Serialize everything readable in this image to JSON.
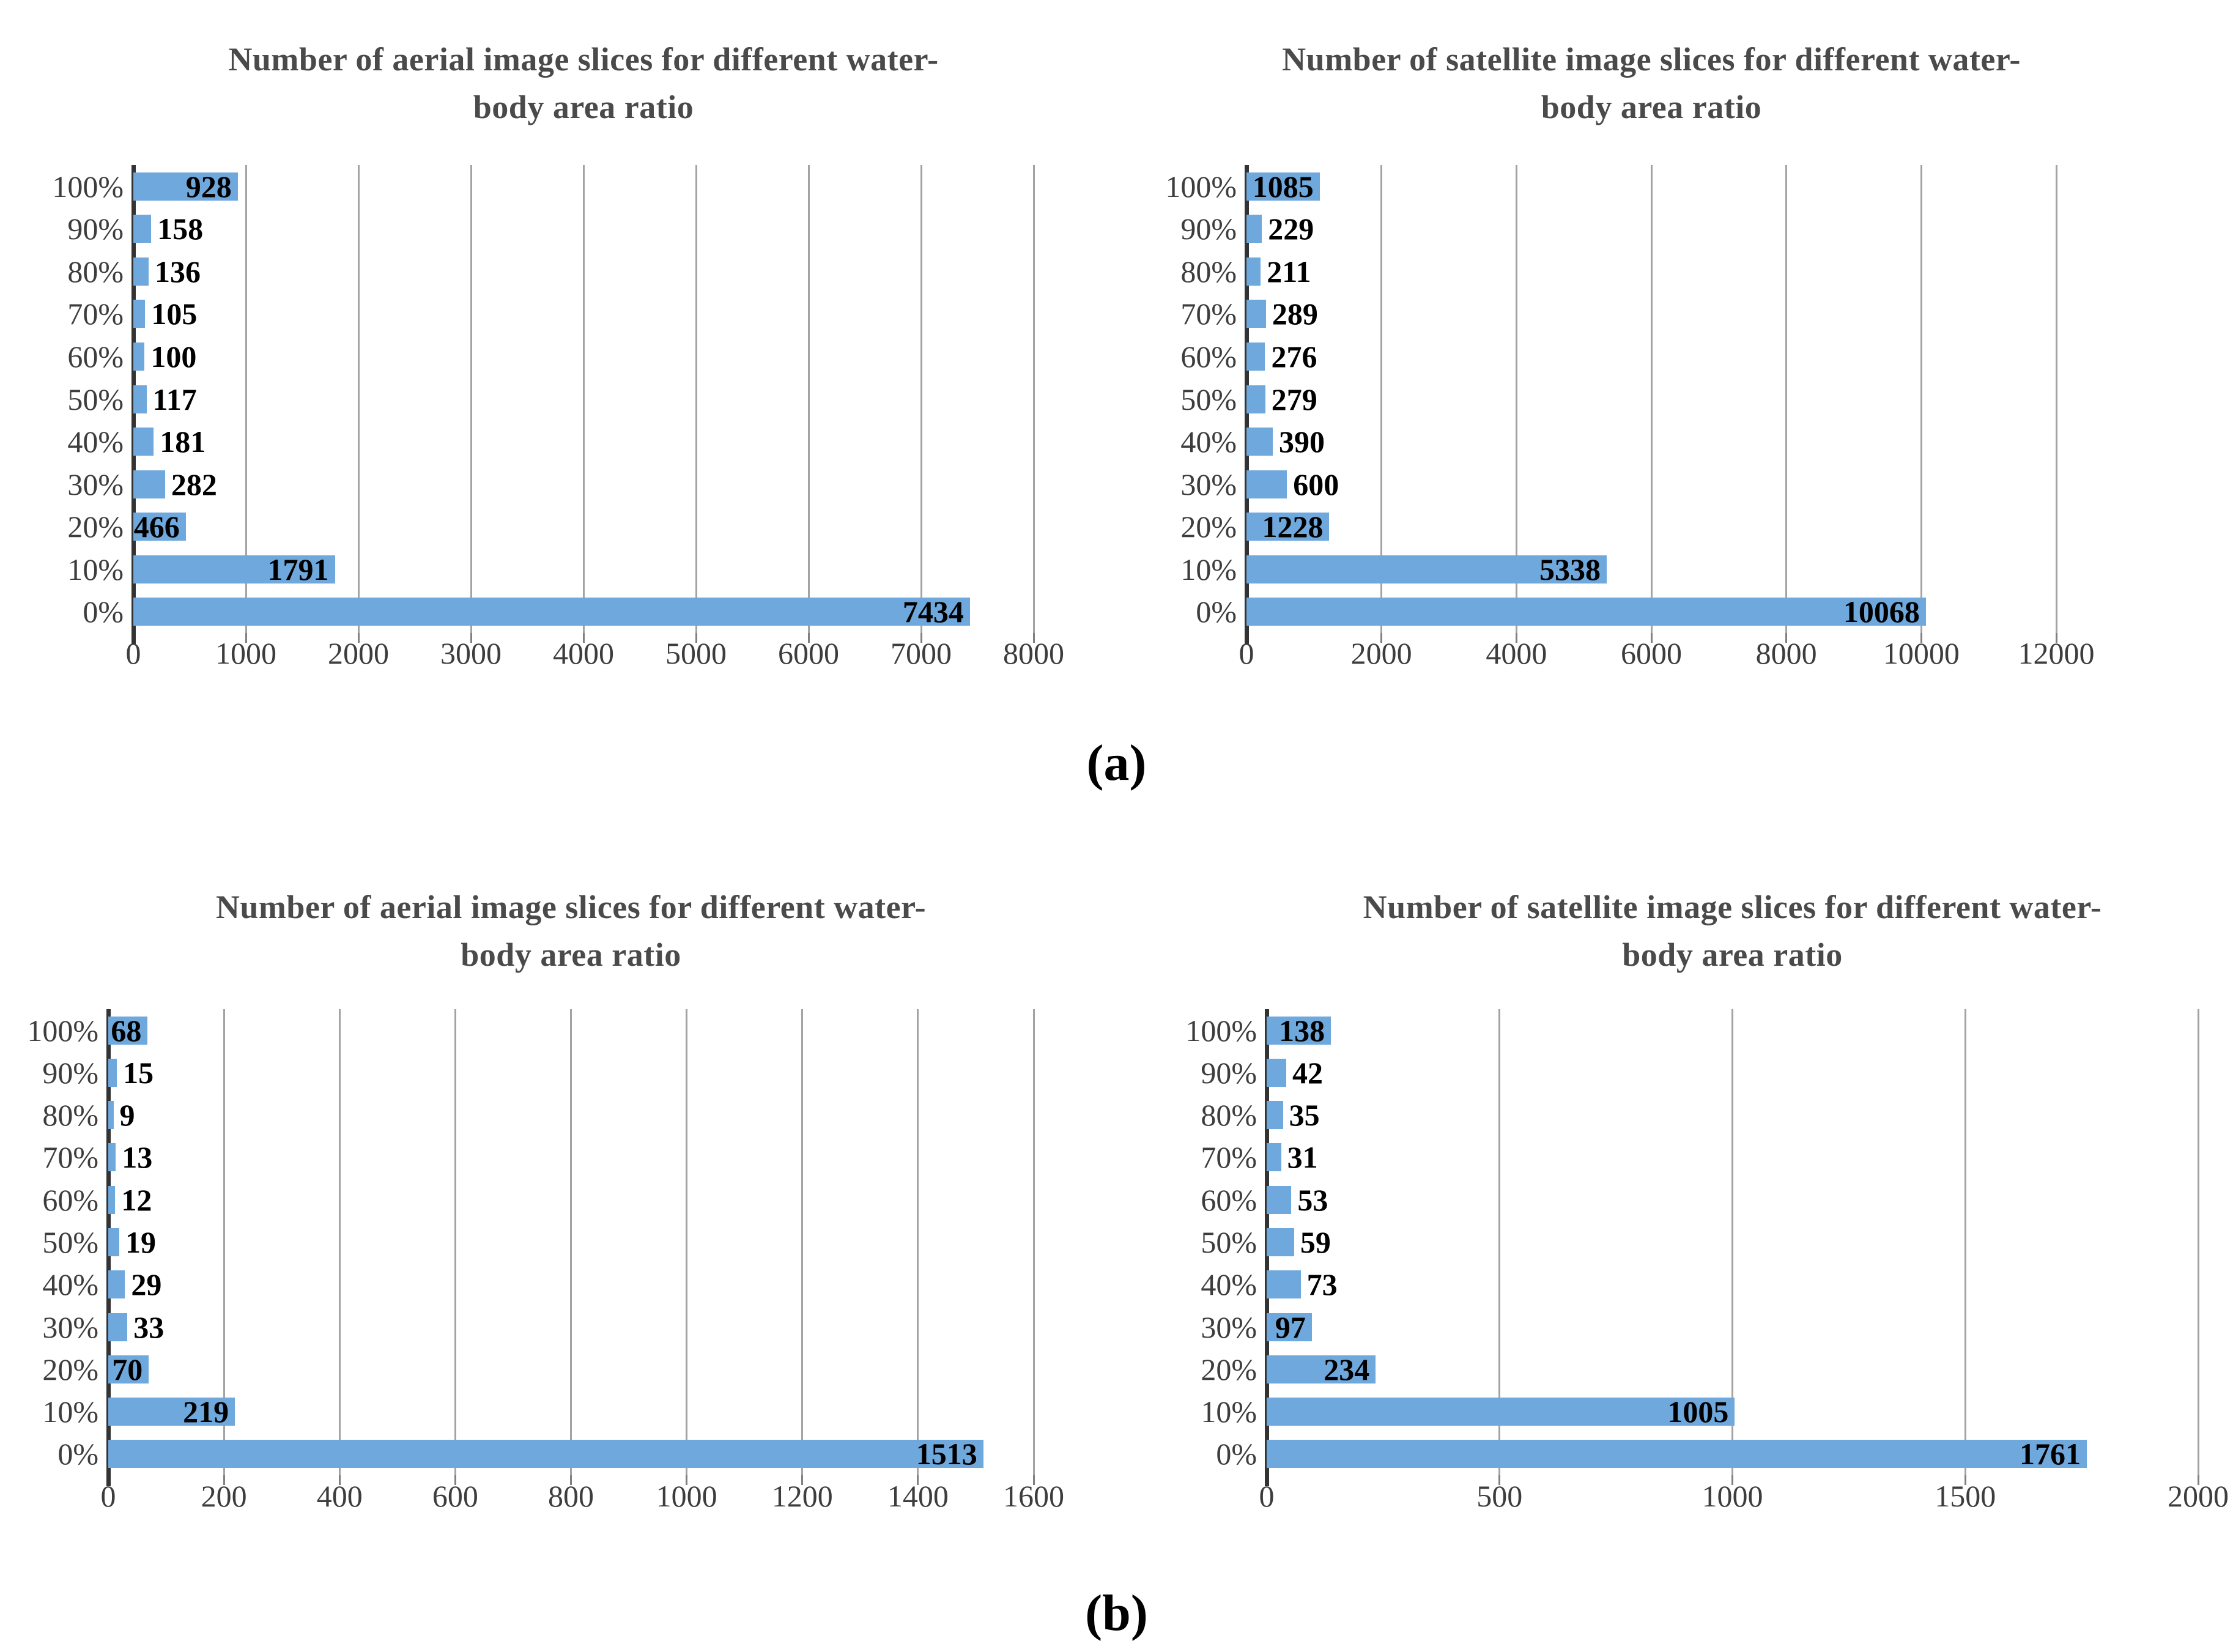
{
  "figure": {
    "caption_a": "(a)",
    "caption_b": "(b)"
  },
  "colors": {
    "bar_fill": "#6fa8dc",
    "gridline": "#a3a3a3",
    "axis_line": "#333333",
    "title_text": "#4a4a4a",
    "tick_text": "#3d3d3d",
    "value_text": "#000000",
    "background": "#ffffff"
  },
  "chart_data": [
    {
      "id": "aerial-a",
      "type": "bar",
      "orientation": "horizontal",
      "title": "Number of aerial image slices for different water-body area ratio",
      "title_lines": [
        "Number of aerial image slices for different water-",
        "body area ratio"
      ],
      "ylabel": "",
      "xlabel": "",
      "categories": [
        "100%",
        "90%",
        "80%",
        "70%",
        "60%",
        "50%",
        "40%",
        "30%",
        "20%",
        "10%",
        "0%"
      ],
      "values": [
        928,
        158,
        136,
        105,
        100,
        117,
        181,
        282,
        466,
        1791,
        7434
      ],
      "x_ticks": [
        "0",
        "1000",
        "2000",
        "3000",
        "4000",
        "5000",
        "6000",
        "7000",
        "8000"
      ],
      "xlim": [
        0,
        8000
      ],
      "grid": true,
      "legend": false
    },
    {
      "id": "satellite-a",
      "type": "bar",
      "orientation": "horizontal",
      "title": "Number of satellite image slices for different water-body area ratio",
      "title_lines": [
        "Number of satellite image slices for different water-",
        "body area ratio"
      ],
      "ylabel": "",
      "xlabel": "",
      "categories": [
        "100%",
        "90%",
        "80%",
        "70%",
        "60%",
        "50%",
        "40%",
        "30%",
        "20%",
        "10%",
        "0%"
      ],
      "values": [
        1085,
        229,
        211,
        289,
        276,
        279,
        390,
        600,
        1228,
        5338,
        10068
      ],
      "x_ticks": [
        "0",
        "2000",
        "4000",
        "6000",
        "8000",
        "10000",
        "12000"
      ],
      "xlim": [
        0,
        12000
      ],
      "grid": true,
      "legend": false
    },
    {
      "id": "aerial-b",
      "type": "bar",
      "orientation": "horizontal",
      "title": "Number of aerial image slices for different water-body area ratio",
      "title_lines": [
        "Number of aerial image slices for different water-",
        "body area ratio"
      ],
      "ylabel": "",
      "xlabel": "",
      "categories": [
        "100%",
        "90%",
        "80%",
        "70%",
        "60%",
        "50%",
        "40%",
        "30%",
        "20%",
        "10%",
        "0%"
      ],
      "values": [
        68,
        15,
        9,
        13,
        12,
        19,
        29,
        33,
        70,
        219,
        1513
      ],
      "x_ticks": [
        "0",
        "200",
        "400",
        "600",
        "800",
        "1000",
        "1200",
        "1400",
        "1600"
      ],
      "xlim": [
        0,
        1600
      ],
      "grid": true,
      "legend": false
    },
    {
      "id": "satellite-b",
      "type": "bar",
      "orientation": "horizontal",
      "title": "Number of satellite image slices for different water-body area ratio",
      "title_lines": [
        "Number of satellite image slices for different water-",
        "body area ratio"
      ],
      "ylabel": "",
      "xlabel": "",
      "categories": [
        "100%",
        "90%",
        "80%",
        "70%",
        "60%",
        "50%",
        "40%",
        "30%",
        "20%",
        "10%",
        "0%"
      ],
      "values": [
        138,
        42,
        35,
        31,
        53,
        59,
        73,
        97,
        234,
        1005,
        1761
      ],
      "x_ticks": [
        "0",
        "500",
        "1000",
        "1500",
        "2000"
      ],
      "xlim": [
        0,
        2000
      ],
      "grid": true,
      "legend": false
    }
  ]
}
